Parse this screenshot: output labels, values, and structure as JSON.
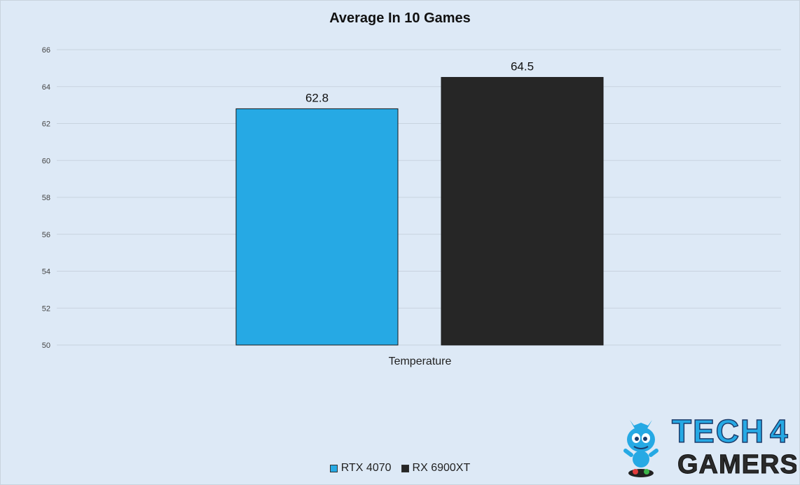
{
  "chart_data": {
    "type": "bar",
    "title": "Average In 10 Games",
    "categories": [
      "Temperature"
    ],
    "series": [
      {
        "name": "RTX 4070",
        "values": [
          62.8
        ],
        "color": "#26a9e4"
      },
      {
        "name": "RX 6900XT",
        "values": [
          64.5
        ],
        "color": "#262626"
      }
    ],
    "ylim": [
      50,
      66
    ],
    "yticks": [
      50,
      52,
      54,
      56,
      58,
      60,
      62,
      64,
      66
    ],
    "grid": true,
    "legend_position": "bottom"
  },
  "logo": {
    "text_top": "TECH",
    "digit": "4",
    "text_bottom": "GAMERS"
  }
}
